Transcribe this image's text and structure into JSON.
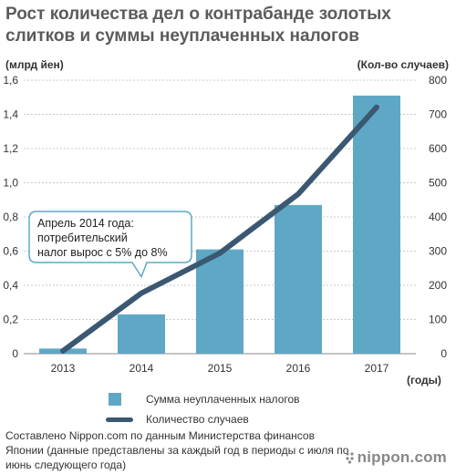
{
  "header": {
    "title": "Рост количества дел о контрабанде золотых слитков и суммы неуплаченных налогов"
  },
  "colors": {
    "bar": "#5fa8c5",
    "line": "#3b5873",
    "grid": "#c8c8c8",
    "callout_border": "#5fa8c5"
  },
  "chart_data": {
    "type": "bar",
    "title": "Рост количества дел о контрабанде золотых слитков и суммы неуплаченных налогов",
    "categories": [
      "2013",
      "2014",
      "2015",
      "2016",
      "2017"
    ],
    "xlabel": "(годы)",
    "ylabel": "(млрд йен)",
    "y2label": "(Кол-во случаев)",
    "ylim": [
      0,
      1.6
    ],
    "y2lim": [
      0,
      800
    ],
    "y_ticks": [
      "0",
      "0,2",
      "0,4",
      "0,6",
      "0,8",
      "1,0",
      "1,2",
      "1,4",
      "1,6"
    ],
    "y2_ticks": [
      "0",
      "100",
      "200",
      "300",
      "400",
      "500",
      "600",
      "700",
      "800"
    ],
    "series": [
      {
        "name": "Сумма неуплаченных налогов",
        "type": "bar",
        "axis": "left",
        "values": [
          0.03,
          0.23,
          0.61,
          0.87,
          1.51
        ]
      },
      {
        "name": "Количество случаев",
        "type": "line",
        "axis": "right",
        "values": [
          8,
          177,
          294,
          467,
          721
        ]
      }
    ],
    "annotation": {
      "lines": [
        "Апрель 2014 года:",
        "потребительский",
        "налог вырос с 5% до 8%"
      ],
      "category": "2014"
    },
    "grid": true,
    "legend_position": "bottom"
  },
  "footer": {
    "source": "Составлено Nippon.com по данным Министерства финансов Японии (данные представлены за каждый год в периоды с июля по июнь следующего года)",
    "brand": "nippon.com"
  }
}
